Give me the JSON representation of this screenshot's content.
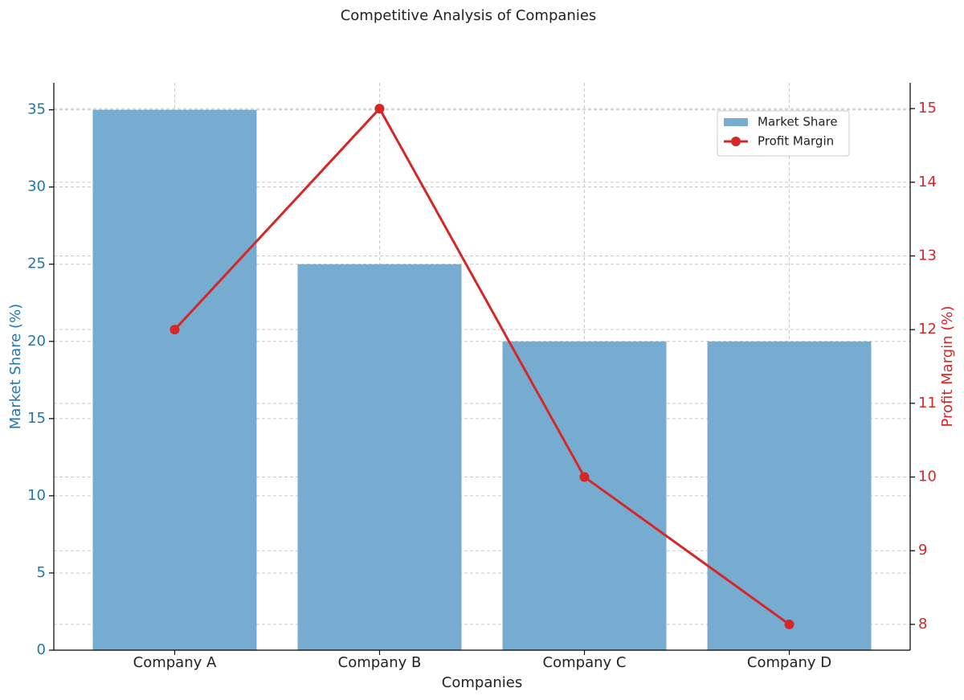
{
  "chart_data": {
    "type": "bar_line",
    "title": "Competitive Analysis of Companies",
    "x_label": "Companies",
    "y_label": "Market Share (%)",
    "y2_label": "Profit Margin (%)",
    "categories": [
      "Company A",
      "Company B",
      "Company C",
      "Company D"
    ],
    "series": [
      {
        "name": "Market Share",
        "type": "bar",
        "color": "#77acd1",
        "values": [
          35,
          25,
          20,
          20
        ]
      },
      {
        "name": "Profit Margin",
        "type": "line",
        "axis": "y2",
        "color": "#d62728",
        "values": [
          12,
          15,
          10,
          8
        ]
      }
    ],
    "ylim": [
      0,
      36.75
    ],
    "yticks": [
      0,
      5,
      10,
      15,
      20,
      25,
      30,
      35
    ],
    "y_color": "#1f77b4",
    "y2lim": [
      7.65,
      15.35
    ],
    "y2ticks": [
      8,
      9,
      10,
      11,
      12,
      13,
      14,
      15
    ],
    "y2_color": "#d62728",
    "grid": true,
    "legend": "upper right"
  }
}
